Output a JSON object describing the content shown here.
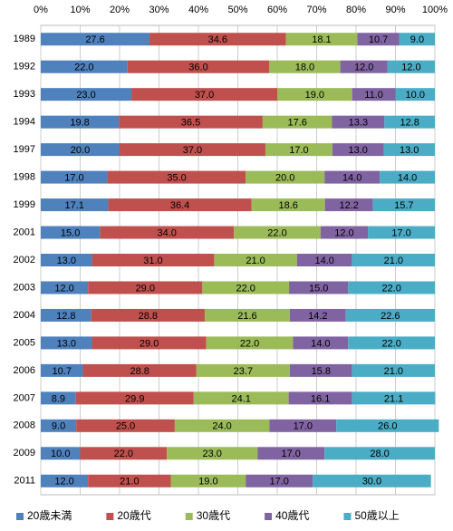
{
  "chart_data": {
    "type": "bar",
    "orientation": "horizontal",
    "stacked": true,
    "categories": [
      "1989",
      "1992",
      "1993",
      "1994",
      "1997",
      "1998",
      "1999",
      "2001",
      "2002",
      "2003",
      "2004",
      "2005",
      "2006",
      "2007",
      "2008",
      "2009",
      "2011"
    ],
    "series": [
      {
        "name": "20歳未満",
        "color": "#4f81bd",
        "values": [
          27.6,
          22,
          23,
          19.8,
          20,
          17,
          17.1,
          15,
          13,
          12,
          12.8,
          13,
          10.7,
          8.9,
          9,
          10,
          12
        ],
        "value_labels": [
          "27.6",
          "22.0",
          "23.0",
          "19.8",
          "20.0",
          "17.0",
          "17.1",
          "15.0",
          "13.0",
          "12.0",
          "12.8",
          "13.0",
          "10.7",
          "8.9",
          "9.0",
          "10.0",
          "12.0"
        ]
      },
      {
        "name": "20歳代",
        "color": "#c0504d",
        "values": [
          34.6,
          36,
          37,
          36.5,
          37,
          35,
          36.4,
          34,
          31,
          29,
          28.8,
          29,
          28.8,
          29.9,
          25,
          22,
          21
        ],
        "value_labels": [
          "34.6",
          "36.0",
          "37.0",
          "36.5",
          "37.0",
          "35.0",
          "36.4",
          "34.0",
          "31.0",
          "29.0",
          "28.8",
          "29.0",
          "28.8",
          "29.9",
          "25.0",
          "22.0",
          "21.0"
        ]
      },
      {
        "name": "30歳代",
        "color": "#9bbb59",
        "values": [
          18.1,
          18,
          19,
          17.6,
          17,
          20,
          18.6,
          22,
          21,
          22,
          21.6,
          22,
          23.7,
          24.1,
          24,
          23,
          19
        ],
        "value_labels": [
          "18.1",
          "18.0",
          "19.0",
          "17.6",
          "17.0",
          "20.0",
          "18.6",
          "22.0",
          "21.0",
          "22.0",
          "21.6",
          "22.0",
          "23.7",
          "24.1",
          "24.0",
          "23.0",
          "19.0"
        ]
      },
      {
        "name": "40歳代",
        "color": "#8064a2",
        "values": [
          10.7,
          12,
          11,
          13.3,
          13,
          14,
          12.2,
          12,
          14,
          15,
          14.2,
          14,
          15.8,
          16.1,
          17,
          17,
          17
        ],
        "value_labels": [
          "10.7",
          "12.0",
          "11.0",
          "13.3",
          "13.0",
          "14.0",
          "12.2",
          "12.0",
          "14.0",
          "15.0",
          "14.2",
          "14.0",
          "15.8",
          "16.1",
          "17.0",
          "17.0",
          "17.0"
        ]
      },
      {
        "name": "50歳以上",
        "color": "#4bacc6",
        "values": [
          9,
          12,
          10,
          12.8,
          13,
          14,
          15.7,
          17,
          21,
          22,
          22.6,
          22,
          21,
          21.1,
          26,
          28,
          30
        ],
        "value_labels": [
          "9.0",
          "12.0",
          "10.0",
          "12.8",
          "13.0",
          "14.0",
          "15.7",
          "17.0",
          "21.0",
          "22.0",
          "22.6",
          "22.0",
          "21.0",
          "21.1",
          "26.0",
          "28.0",
          "30.0"
        ]
      }
    ],
    "xlim": [
      0,
      100
    ],
    "xticks": [
      {
        "value": 0,
        "label": "0%"
      },
      {
        "value": 10,
        "label": "10%"
      },
      {
        "value": 20,
        "label": "20%"
      },
      {
        "value": 30,
        "label": "30%"
      },
      {
        "value": 40,
        "label": "40%"
      },
      {
        "value": 50,
        "label": "50%"
      },
      {
        "value": 60,
        "label": "60%"
      },
      {
        "value": 70,
        "label": "70%"
      },
      {
        "value": 80,
        "label": "80%"
      },
      {
        "value": 90,
        "label": "90%"
      },
      {
        "value": 100,
        "label": "100%"
      }
    ],
    "grid": true,
    "legend": "bottom"
  }
}
